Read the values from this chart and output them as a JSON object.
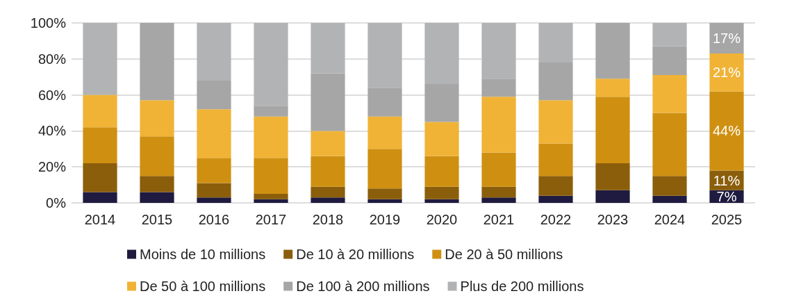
{
  "chart_data": {
    "type": "bar",
    "stacked": true,
    "categories": [
      "2014",
      "2015",
      "2016",
      "2017",
      "2018",
      "2019",
      "2020",
      "2021",
      "2022",
      "2023",
      "2024",
      "2025"
    ],
    "ylim": [
      0,
      100
    ],
    "yticks": [
      {
        "value": 0,
        "label": "0%"
      },
      {
        "value": 20,
        "label": "20%"
      },
      {
        "value": 40,
        "label": "40%"
      },
      {
        "value": 60,
        "label": "60%"
      },
      {
        "value": 80,
        "label": "80%"
      },
      {
        "value": 100,
        "label": "100%"
      }
    ],
    "grid": "y",
    "legend": "bottom",
    "series": [
      {
        "name": "Moins de 10 millions",
        "color": "#1f1a3f",
        "values": [
          6,
          6,
          3,
          2,
          3,
          2,
          2,
          3,
          4,
          7,
          4,
          7
        ],
        "value_labels": [
          null,
          null,
          null,
          null,
          null,
          null,
          null,
          null,
          null,
          null,
          null,
          "7%"
        ]
      },
      {
        "name": "De 10 à 20 millions",
        "color": "#8b5e0b",
        "values": [
          16,
          9,
          8,
          3,
          6,
          6,
          7,
          6,
          11,
          15,
          11,
          11
        ],
        "value_labels": [
          null,
          null,
          null,
          null,
          null,
          null,
          null,
          null,
          null,
          null,
          null,
          "11%"
        ]
      },
      {
        "name": "De 20 à 50 millions",
        "color": "#cf9011",
        "values": [
          20,
          22,
          14,
          20,
          17,
          22,
          17,
          19,
          18,
          37,
          35,
          44
        ],
        "value_labels": [
          null,
          null,
          null,
          null,
          null,
          null,
          null,
          null,
          null,
          null,
          null,
          "44%"
        ]
      },
      {
        "name": "De 50 à 100 millions",
        "color": "#f0b336",
        "values": [
          18,
          20,
          27,
          23,
          14,
          18,
          19,
          31,
          24,
          10,
          21,
          21
        ],
        "value_labels": [
          null,
          null,
          null,
          null,
          null,
          null,
          null,
          null,
          null,
          null,
          null,
          "21%"
        ]
      },
      {
        "name": "De 100 à 200 millions",
        "color": "#a6a6a6",
        "values": [
          0,
          43,
          16,
          6,
          32,
          16,
          21,
          10,
          21,
          31,
          16,
          17
        ],
        "value_labels": [
          null,
          null,
          null,
          null,
          null,
          null,
          null,
          null,
          null,
          null,
          null,
          "17%"
        ]
      },
      {
        "name": "Plus de 200 millions",
        "color": "#b2b3b5",
        "values": [
          40,
          0,
          32,
          46,
          28,
          36,
          34,
          31,
          22,
          0,
          13,
          0
        ]
      }
    ]
  }
}
